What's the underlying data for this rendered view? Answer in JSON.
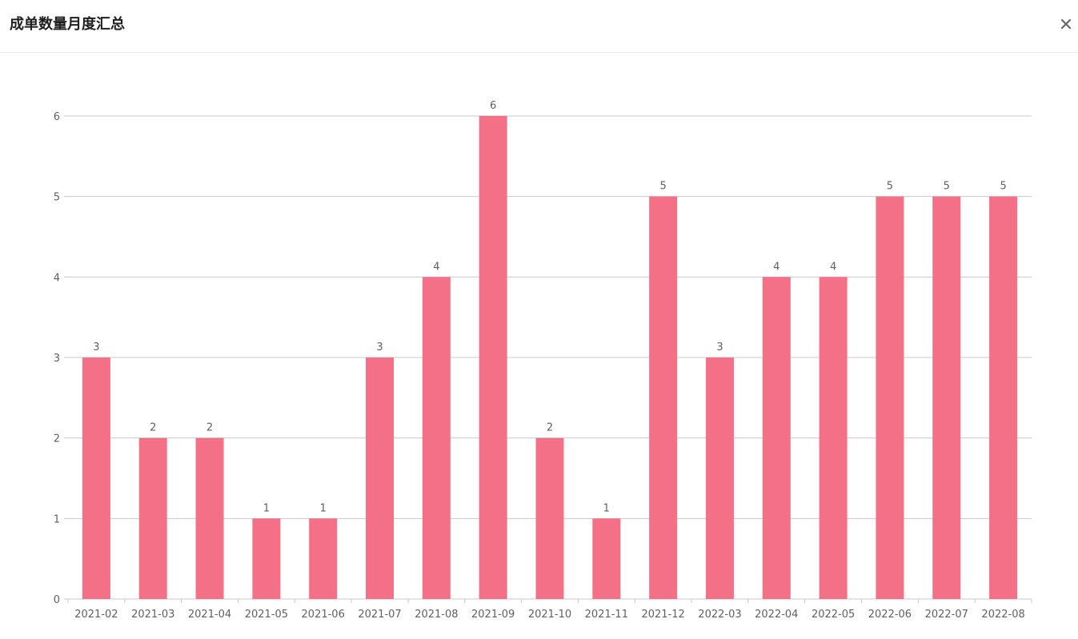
{
  "modal": {
    "title": "成单数量月度汇总",
    "close_icon": "close-icon"
  },
  "colors": {
    "bar": "#f47086",
    "grid": "#c8c8c8",
    "axis_text": "#5f5f5f",
    "label_text": "#5f5f5f"
  },
  "chart_data": {
    "type": "bar",
    "title": "",
    "xlabel": "",
    "ylabel": "",
    "ylim": [
      0,
      6
    ],
    "yticks": [
      0,
      1,
      2,
      3,
      4,
      5,
      6
    ],
    "grid": true,
    "data_labels": "top",
    "categories": [
      "2021-02",
      "2021-03",
      "2021-04",
      "2021-05",
      "2021-06",
      "2021-07",
      "2021-08",
      "2021-09",
      "2021-10",
      "2021-11",
      "2021-12",
      "2022-03",
      "2022-04",
      "2022-05",
      "2022-06",
      "2022-07",
      "2022-08"
    ],
    "values": [
      3,
      2,
      2,
      1,
      1,
      3,
      4,
      6,
      2,
      1,
      5,
      3,
      4,
      4,
      5,
      5,
      5
    ]
  }
}
